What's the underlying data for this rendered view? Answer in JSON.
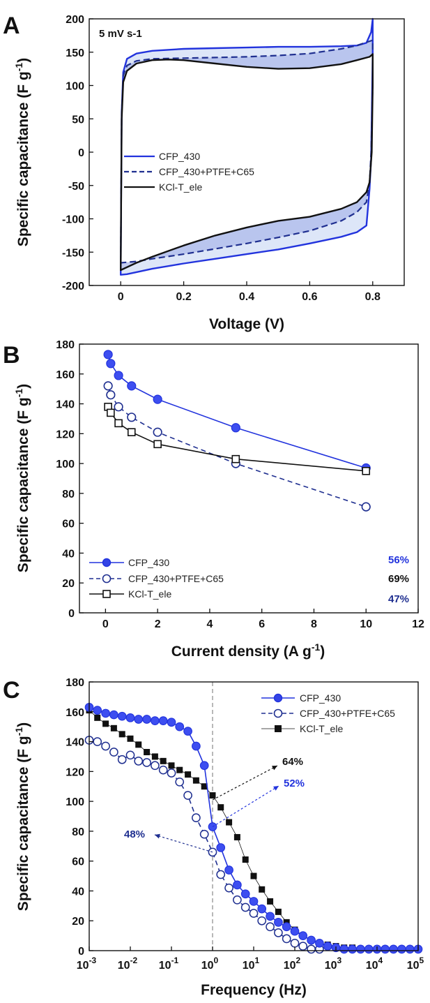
{
  "colors": {
    "blue": "#2233dd",
    "dark_blue": "#1f2f90",
    "black": "#111111",
    "fill_light": "#dde6f8",
    "fill_mid": "#aab6ea"
  },
  "chart_data": [
    {
      "panel": "A",
      "type": "line",
      "annotation": "5 mV s-1",
      "annotation_sup": "-1",
      "xlabel": "Voltage (V)",
      "ylabel": "Specific capacitance (F g",
      "ylabel_sup": "-1",
      "ylabel_end": ")",
      "xlim": [
        -0.1,
        0.9
      ],
      "ylim": [
        -200,
        200
      ],
      "xticks": [
        0,
        0.2,
        0.4,
        0.6,
        0.8
      ],
      "xtick_labels": [
        "0",
        "0.2",
        "0.4",
        "0.6",
        "0.8"
      ],
      "yticks": [
        -200,
        -150,
        -100,
        -50,
        0,
        50,
        100,
        150,
        200
      ],
      "ytick_labels": [
        "-200",
        "-150",
        "-100",
        "-50",
        "0",
        "50",
        "100",
        "150",
        "200"
      ],
      "series": [
        {
          "name": "CFP_430",
          "style": "solid-blue",
          "upper": [
            [
              0,
              -180
            ],
            [
              0.003,
              60
            ],
            [
              0.008,
              120
            ],
            [
              0.02,
              140
            ],
            [
              0.05,
              148
            ],
            [
              0.1,
              152
            ],
            [
              0.2,
              155
            ],
            [
              0.3,
              156
            ],
            [
              0.4,
              157
            ],
            [
              0.5,
              158
            ],
            [
              0.6,
              158
            ],
            [
              0.7,
              159
            ],
            [
              0.75,
              160
            ],
            [
              0.78,
              164
            ],
            [
              0.795,
              180
            ],
            [
              0.8,
              200
            ]
          ],
          "lower": [
            [
              0.8,
              200
            ],
            [
              0.8,
              150
            ],
            [
              0.795,
              -10
            ],
            [
              0.79,
              -55
            ],
            [
              0.78,
              -110
            ],
            [
              0.75,
              -120
            ],
            [
              0.7,
              -127
            ],
            [
              0.6,
              -137
            ],
            [
              0.5,
              -146
            ],
            [
              0.4,
              -153
            ],
            [
              0.3,
              -160
            ],
            [
              0.2,
              -167
            ],
            [
              0.1,
              -175
            ],
            [
              0.05,
              -180
            ],
            [
              0.02,
              -183
            ],
            [
              0,
              -184
            ]
          ]
        },
        {
          "name": "CFP_430+PTFE+C65",
          "style": "dashed-blue",
          "upper": [
            [
              0,
              -165
            ],
            [
              0.003,
              60
            ],
            [
              0.008,
              115
            ],
            [
              0.02,
              130
            ],
            [
              0.05,
              137
            ],
            [
              0.1,
              140
            ],
            [
              0.2,
              141
            ],
            [
              0.3,
              142
            ],
            [
              0.4,
              143
            ],
            [
              0.5,
              145
            ],
            [
              0.6,
              148
            ],
            [
              0.7,
              155
            ],
            [
              0.75,
              160
            ],
            [
              0.8,
              168
            ]
          ],
          "lower": [
            [
              0.8,
              168
            ],
            [
              0.8,
              100
            ],
            [
              0.795,
              0
            ],
            [
              0.79,
              -45
            ],
            [
              0.78,
              -75
            ],
            [
              0.75,
              -90
            ],
            [
              0.7,
              -103
            ],
            [
              0.6,
              -118
            ],
            [
              0.5,
              -128
            ],
            [
              0.4,
              -137
            ],
            [
              0.3,
              -145
            ],
            [
              0.2,
              -153
            ],
            [
              0.1,
              -160
            ],
            [
              0.05,
              -164
            ],
            [
              0,
              -166
            ]
          ]
        },
        {
          "name": "KCl-T_ele",
          "style": "solid-black",
          "upper": [
            [
              0,
              -178
            ],
            [
              0.003,
              50
            ],
            [
              0.008,
              105
            ],
            [
              0.02,
              122
            ],
            [
              0.05,
              133
            ],
            [
              0.1,
              138
            ],
            [
              0.15,
              139
            ],
            [
              0.2,
              138
            ],
            [
              0.3,
              133
            ],
            [
              0.4,
              128
            ],
            [
              0.5,
              125
            ],
            [
              0.6,
              126
            ],
            [
              0.7,
              132
            ],
            [
              0.75,
              138
            ],
            [
              0.79,
              143
            ],
            [
              0.8,
              147
            ]
          ],
          "lower": [
            [
              0.8,
              147
            ],
            [
              0.8,
              100
            ],
            [
              0.797,
              0
            ],
            [
              0.79,
              -45
            ],
            [
              0.78,
              -60
            ],
            [
              0.75,
              -75
            ],
            [
              0.7,
              -85
            ],
            [
              0.6,
              -97
            ],
            [
              0.5,
              -103
            ],
            [
              0.4,
              -113
            ],
            [
              0.3,
              -125
            ],
            [
              0.2,
              -140
            ],
            [
              0.1,
              -157
            ],
            [
              0.05,
              -166
            ],
            [
              0,
              -177
            ]
          ]
        }
      ]
    },
    {
      "panel": "B",
      "type": "line",
      "xlabel": "Current density (A g",
      "xlabel_sup": "-1",
      "xlabel_end": ")",
      "ylabel": "Specific capacitance (F g",
      "ylabel_sup": "-1",
      "ylabel_end": ")",
      "xlim": [
        -1,
        12
      ],
      "ylim": [
        0,
        180
      ],
      "xticks": [
        0,
        2,
        4,
        6,
        8,
        10,
        12
      ],
      "xtick_labels": [
        "0",
        "2",
        "4",
        "6",
        "8",
        "10",
        "12"
      ],
      "yticks": [
        0,
        20,
        40,
        60,
        80,
        100,
        120,
        140,
        160,
        180
      ],
      "ytick_labels": [
        "0",
        "20",
        "40",
        "60",
        "80",
        "100",
        "120",
        "140",
        "160",
        "180"
      ],
      "x": [
        0.1,
        0.2,
        0.5,
        1,
        2,
        5,
        10
      ],
      "series": [
        {
          "name": "CFP_430",
          "style": "solid-blue-filled-circle",
          "values": [
            173,
            167,
            159,
            152,
            143,
            124,
            97
          ]
        },
        {
          "name": "CFP_430+PTFE+C65",
          "style": "dashed-blue-open-circle",
          "values": [
            152,
            146,
            138,
            131,
            121,
            100,
            71
          ]
        },
        {
          "name": "KCl-T_ele",
          "style": "solid-black-open-square",
          "values": [
            138,
            134,
            127,
            121,
            113,
            103,
            95
          ]
        }
      ],
      "labels": [
        {
          "text": "56%",
          "series": "CFP_430"
        },
        {
          "text": "69%",
          "series": "KCl-T_ele"
        },
        {
          "text": "47%",
          "series": "CFP_430+PTFE+C65"
        }
      ]
    },
    {
      "panel": "C",
      "type": "scatter",
      "xscale": "log",
      "xlabel": "Frequency (Hz)",
      "ylabel": "Specific capacitance (F g",
      "ylabel_sup": "-1",
      "ylabel_end": ")",
      "xlim": [
        0.001,
        100000
      ],
      "ylim": [
        0,
        180
      ],
      "xtick_base": "10",
      "xtick_exps": [
        "-3",
        "-2",
        "-1",
        "0",
        "1",
        "2",
        "3",
        "4",
        "5"
      ],
      "yticks": [
        0,
        20,
        40,
        60,
        80,
        100,
        120,
        140,
        160,
        180
      ],
      "ytick_labels": [
        "0",
        "20",
        "40",
        "60",
        "80",
        "100",
        "120",
        "140",
        "160",
        "180"
      ],
      "vline_x": 1,
      "series": [
        {
          "name": "CFP_430",
          "style": "solid-blue-filled-circle",
          "x": [
            0.001,
            0.00158,
            0.00251,
            0.00398,
            0.00631,
            0.01,
            0.0158,
            0.0251,
            0.0398,
            0.0631,
            0.1,
            0.158,
            0.251,
            0.398,
            0.631,
            1,
            1.58,
            2.51,
            3.98,
            6.31,
            10,
            15.8,
            25.1,
            39.8,
            63.1,
            100,
            158,
            251,
            398,
            631,
            1000,
            1580,
            2510,
            3980,
            6310,
            10000,
            15800,
            25100,
            39800,
            63100,
            100000
          ],
          "values": [
            163,
            161,
            159,
            158,
            157,
            156,
            155,
            155,
            154,
            154,
            153,
            150,
            147,
            137,
            124,
            83,
            69,
            54,
            44,
            38,
            33,
            28,
            23,
            19,
            16,
            13,
            10,
            7,
            5,
            3,
            2,
            1,
            1,
            1,
            1,
            1,
            1,
            1,
            1,
            1,
            1
          ]
        },
        {
          "name": "CFP_430+PTFE+C65",
          "style": "dashed-blue-open-circle",
          "x": [
            0.001,
            0.00158,
            0.00251,
            0.00398,
            0.00631,
            0.01,
            0.0158,
            0.0251,
            0.0398,
            0.0631,
            0.1,
            0.158,
            0.251,
            0.398,
            0.631,
            1,
            1.58,
            2.51,
            3.98,
            6.31,
            10,
            15.8,
            25.1,
            39.8,
            63.1,
            100,
            158,
            251,
            398
          ],
          "values": [
            141,
            140,
            137,
            133,
            128,
            131,
            127,
            126,
            124,
            121,
            119,
            113,
            104,
            89,
            78,
            66,
            51,
            42,
            34,
            29,
            25,
            20,
            16,
            12,
            8,
            5,
            3,
            1,
            1
          ]
        },
        {
          "name": "KCl-T_ele",
          "style": "thin-black-filled-square",
          "x": [
            0.001,
            0.00158,
            0.00251,
            0.00398,
            0.00631,
            0.01,
            0.0158,
            0.0251,
            0.0398,
            0.0631,
            0.1,
            0.158,
            0.251,
            0.398,
            0.631,
            1,
            1.58,
            2.51,
            3.98,
            6.31,
            10,
            15.8,
            25.1,
            39.8,
            63.1,
            100,
            158,
            251,
            398,
            631,
            1000,
            1580,
            2510,
            3980,
            6310,
            10000,
            15800,
            25100,
            39800,
            63100,
            100000
          ],
          "values": [
            161,
            156,
            152,
            149,
            145,
            142,
            138,
            133,
            130,
            127,
            124,
            121,
            118,
            114,
            110,
            104,
            96,
            86,
            76,
            61,
            50,
            41,
            33,
            26,
            19,
            14,
            10,
            7,
            5,
            4,
            3,
            2,
            2,
            1,
            1,
            1,
            1,
            1,
            1,
            1,
            1
          ]
        }
      ],
      "labels": [
        {
          "text": "64%",
          "series": "KCl-T_ele",
          "at_x": 1,
          "at_y": 101
        },
        {
          "text": "52%",
          "series": "CFP_430",
          "at_x": 1,
          "at_y": 83
        },
        {
          "text": "48%",
          "series": "CFP_430+PTFE+C65",
          "at_x": 1,
          "at_y": 66
        }
      ]
    }
  ]
}
